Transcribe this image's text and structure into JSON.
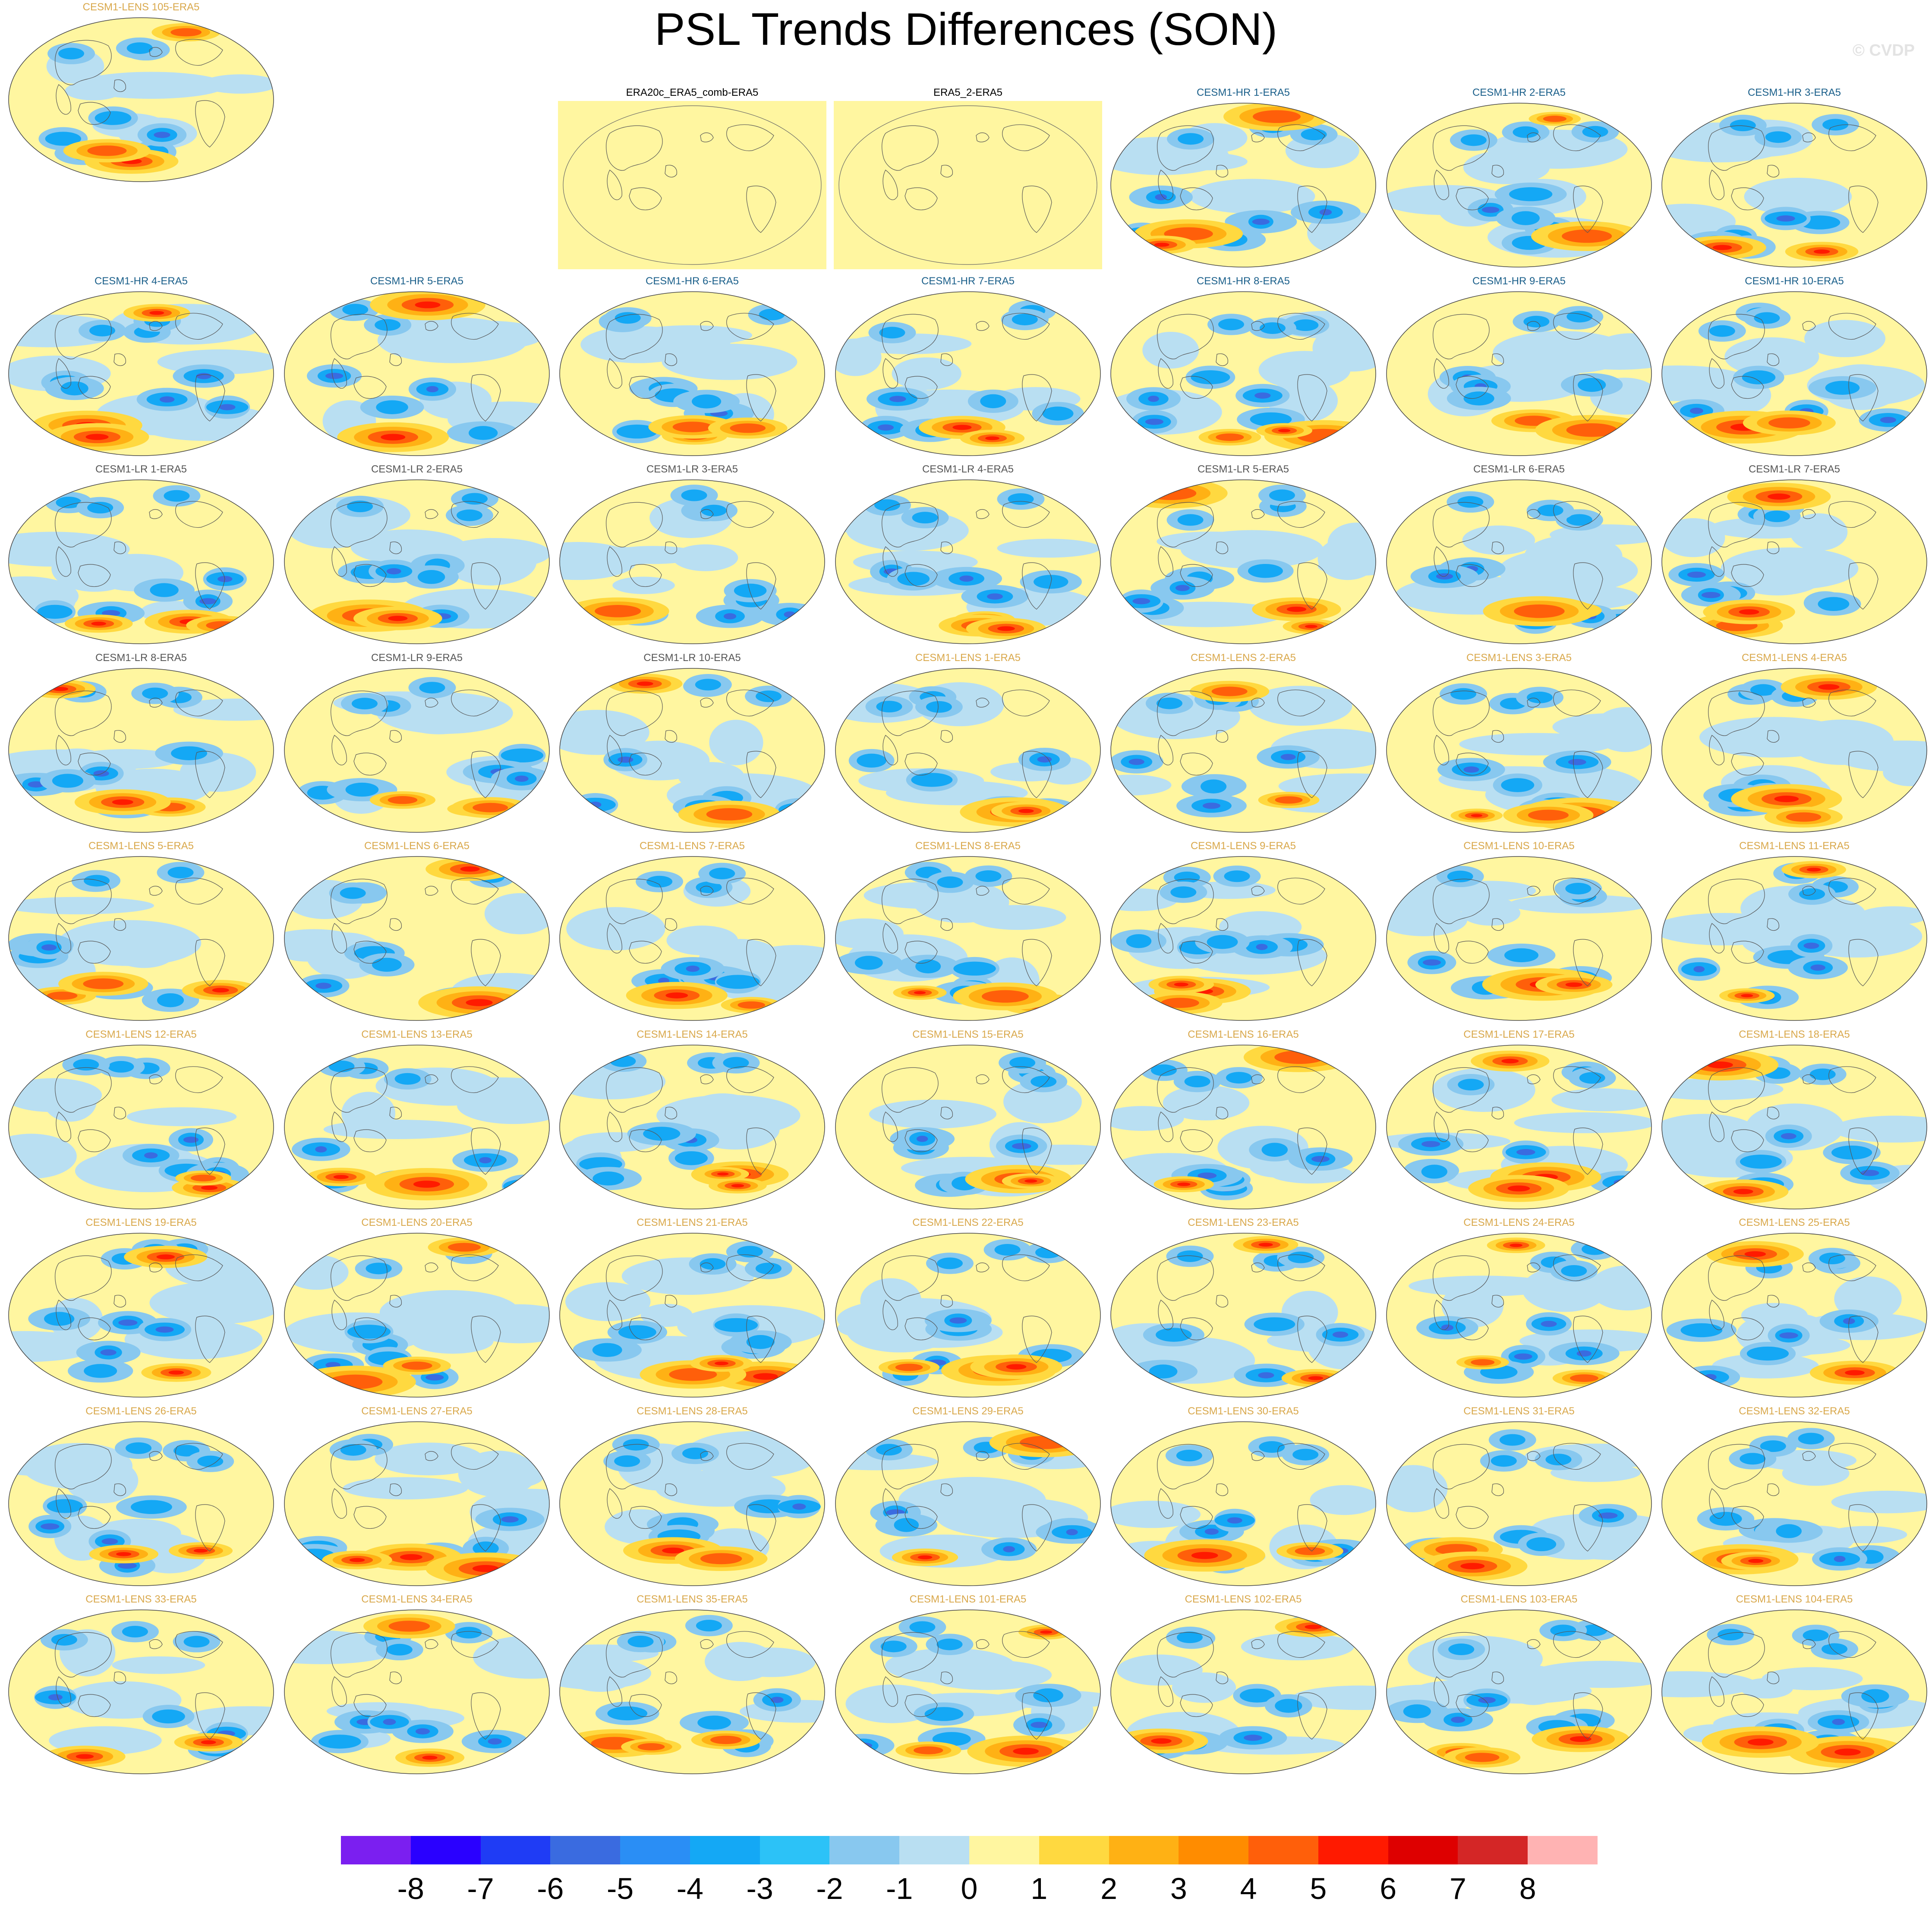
{
  "title": "PSL Trends Differences (SON)",
  "watermark": "© CVDP",
  "panels": [
    {
      "label": "ERA20c_ERA5_comb-ERA5",
      "group": "obs"
    },
    {
      "label": "ERA5_2-ERA5",
      "group": "obs"
    },
    {
      "label": "CESM1-HR 1-ERA5",
      "group": "hr"
    },
    {
      "label": "CESM1-HR 2-ERA5",
      "group": "hr"
    },
    {
      "label": "CESM1-HR 3-ERA5",
      "group": "hr"
    },
    {
      "label": "CESM1-HR 4-ERA5",
      "group": "hr"
    },
    {
      "label": "CESM1-HR 5-ERA5",
      "group": "hr"
    },
    {
      "label": "CESM1-HR 6-ERA5",
      "group": "hr"
    },
    {
      "label": "CESM1-HR 7-ERA5",
      "group": "hr"
    },
    {
      "label": "CESM1-HR 8-ERA5",
      "group": "hr"
    },
    {
      "label": "CESM1-HR 9-ERA5",
      "group": "hr"
    },
    {
      "label": "CESM1-HR 10-ERA5",
      "group": "hr"
    },
    {
      "label": "CESM1-LR 1-ERA5",
      "group": "lr"
    },
    {
      "label": "CESM1-LR 2-ERA5",
      "group": "lr"
    },
    {
      "label": "CESM1-LR 3-ERA5",
      "group": "lr"
    },
    {
      "label": "CESM1-LR 4-ERA5",
      "group": "lr"
    },
    {
      "label": "CESM1-LR 5-ERA5",
      "group": "lr"
    },
    {
      "label": "CESM1-LR 6-ERA5",
      "group": "lr"
    },
    {
      "label": "CESM1-LR 7-ERA5",
      "group": "lr"
    },
    {
      "label": "CESM1-LR 8-ERA5",
      "group": "lr"
    },
    {
      "label": "CESM1-LR 9-ERA5",
      "group": "lr"
    },
    {
      "label": "CESM1-LR 10-ERA5",
      "group": "lr"
    },
    {
      "label": "CESM1-LENS 1-ERA5",
      "group": "lens"
    },
    {
      "label": "CESM1-LENS 2-ERA5",
      "group": "lens"
    },
    {
      "label": "CESM1-LENS 3-ERA5",
      "group": "lens"
    },
    {
      "label": "CESM1-LENS 4-ERA5",
      "group": "lens"
    },
    {
      "label": "CESM1-LENS 5-ERA5",
      "group": "lens"
    },
    {
      "label": "CESM1-LENS 6-ERA5",
      "group": "lens"
    },
    {
      "label": "CESM1-LENS 7-ERA5",
      "group": "lens"
    },
    {
      "label": "CESM1-LENS 8-ERA5",
      "group": "lens"
    },
    {
      "label": "CESM1-LENS 9-ERA5",
      "group": "lens"
    },
    {
      "label": "CESM1-LENS 10-ERA5",
      "group": "lens"
    },
    {
      "label": "CESM1-LENS 11-ERA5",
      "group": "lens"
    },
    {
      "label": "CESM1-LENS 12-ERA5",
      "group": "lens"
    },
    {
      "label": "CESM1-LENS 13-ERA5",
      "group": "lens"
    },
    {
      "label": "CESM1-LENS 14-ERA5",
      "group": "lens"
    },
    {
      "label": "CESM1-LENS 15-ERA5",
      "group": "lens"
    },
    {
      "label": "CESM1-LENS 16-ERA5",
      "group": "lens"
    },
    {
      "label": "CESM1-LENS 17-ERA5",
      "group": "lens"
    },
    {
      "label": "CESM1-LENS 18-ERA5",
      "group": "lens"
    },
    {
      "label": "CESM1-LENS 19-ERA5",
      "group": "lens"
    },
    {
      "label": "CESM1-LENS 20-ERA5",
      "group": "lens"
    },
    {
      "label": "CESM1-LENS 21-ERA5",
      "group": "lens"
    },
    {
      "label": "CESM1-LENS 22-ERA5",
      "group": "lens"
    },
    {
      "label": "CESM1-LENS 23-ERA5",
      "group": "lens"
    },
    {
      "label": "CESM1-LENS 24-ERA5",
      "group": "lens"
    },
    {
      "label": "CESM1-LENS 25-ERA5",
      "group": "lens"
    },
    {
      "label": "CESM1-LENS 26-ERA5",
      "group": "lens"
    },
    {
      "label": "CESM1-LENS 27-ERA5",
      "group": "lens"
    },
    {
      "label": "CESM1-LENS 28-ERA5",
      "group": "lens"
    },
    {
      "label": "CESM1-LENS 29-ERA5",
      "group": "lens"
    },
    {
      "label": "CESM1-LENS 30-ERA5",
      "group": "lens"
    },
    {
      "label": "CESM1-LENS 31-ERA5",
      "group": "lens"
    },
    {
      "label": "CESM1-LENS 32-ERA5",
      "group": "lens"
    },
    {
      "label": "CESM1-LENS 33-ERA5",
      "group": "lens"
    },
    {
      "label": "CESM1-LENS 34-ERA5",
      "group": "lens"
    },
    {
      "label": "CESM1-LENS 35-ERA5",
      "group": "lens"
    },
    {
      "label": "CESM1-LENS 101-ERA5",
      "group": "lens"
    },
    {
      "label": "CESM1-LENS 102-ERA5",
      "group": "lens"
    },
    {
      "label": "CESM1-LENS 103-ERA5",
      "group": "lens"
    },
    {
      "label": "CESM1-LENS 104-ERA5",
      "group": "lens"
    },
    {
      "label": "CESM1-LENS 105-ERA5",
      "group": "lens"
    }
  ],
  "colorbar": {
    "colors": [
      "#7b1ff0",
      "#2a00ff",
      "#1f3cf5",
      "#3a6be0",
      "#2a8ef5",
      "#14a8f5",
      "#2cc2f7",
      "#88c8ef",
      "#b9dff2",
      "#fff6a0",
      "#ffd940",
      "#ffb114",
      "#ff8c00",
      "#ff5f0a",
      "#ff1a00",
      "#de0000",
      "#d42626",
      "#ffb3b3"
    ],
    "labels": [
      "-8",
      "-7",
      "-6",
      "-5",
      "-4",
      "-3",
      "-2",
      "-1",
      "0",
      "1",
      "2",
      "3",
      "4",
      "5",
      "6",
      "7",
      "8"
    ]
  }
}
